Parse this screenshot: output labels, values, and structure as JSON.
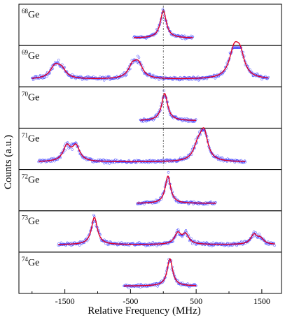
{
  "chart_data": {
    "type": "scatter",
    "xlabel": "Relative Frequency (MHz)",
    "ylabel": "Counts (a.u.)",
    "xlim": [
      -2200,
      1800
    ],
    "xticks": [
      -1500,
      -500,
      500,
      1500
    ],
    "xticks_minor": [
      -2000,
      -1000,
      0,
      1000
    ],
    "reference_line_x": 0,
    "colors": {
      "data": "#3c3cff",
      "fit": "#e0002a",
      "frame": "#000000",
      "reference": "#555555"
    },
    "panels": [
      {
        "mass": "68",
        "element": "Ge",
        "x_range": [
          -450,
          450
        ],
        "baseline": 0.18,
        "peaks": [
          [
            0,
            1.0,
            55
          ]
        ]
      },
      {
        "mass": "69",
        "element": "Ge",
        "x_range": [
          -2000,
          1600
        ],
        "baseline": 0.18,
        "peaks": [
          [
            -1650,
            0.45,
            90
          ],
          [
            -1550,
            0.3,
            80
          ],
          [
            -470,
            0.42,
            80
          ],
          [
            -380,
            0.5,
            80
          ],
          [
            1080,
            1.0,
            90
          ],
          [
            1170,
            0.75,
            80
          ]
        ]
      },
      {
        "mass": "70",
        "element": "Ge",
        "x_range": [
          -350,
          500
        ],
        "baseline": 0.18,
        "peaks": [
          [
            20,
            1.0,
            55
          ]
        ]
      },
      {
        "mass": "71",
        "element": "Ge",
        "x_range": [
          -1900,
          1250
        ],
        "baseline": 0.15,
        "peaks": [
          [
            -1470,
            0.55,
            70
          ],
          [
            -1330,
            0.55,
            70
          ],
          [
            530,
            0.55,
            80
          ],
          [
            620,
            1.0,
            70
          ]
        ]
      },
      {
        "mass": "72",
        "element": "Ge",
        "x_range": [
          -400,
          800
        ],
        "baseline": 0.12,
        "peaks": [
          [
            70,
            1.0,
            50
          ]
        ]
      },
      {
        "mass": "73",
        "element": "Ge",
        "x_range": [
          -1600,
          1700
        ],
        "baseline": 0.18,
        "peaks": [
          [
            -1050,
            1.0,
            55
          ],
          [
            220,
            0.4,
            60
          ],
          [
            340,
            0.35,
            60
          ],
          [
            1380,
            0.35,
            60
          ],
          [
            1480,
            0.2,
            60
          ]
        ]
      },
      {
        "mass": "74",
        "element": "Ge",
        "x_range": [
          -600,
          500
        ],
        "baseline": 0.2,
        "peaks": [
          [
            100,
            1.0,
            50
          ]
        ]
      }
    ]
  }
}
